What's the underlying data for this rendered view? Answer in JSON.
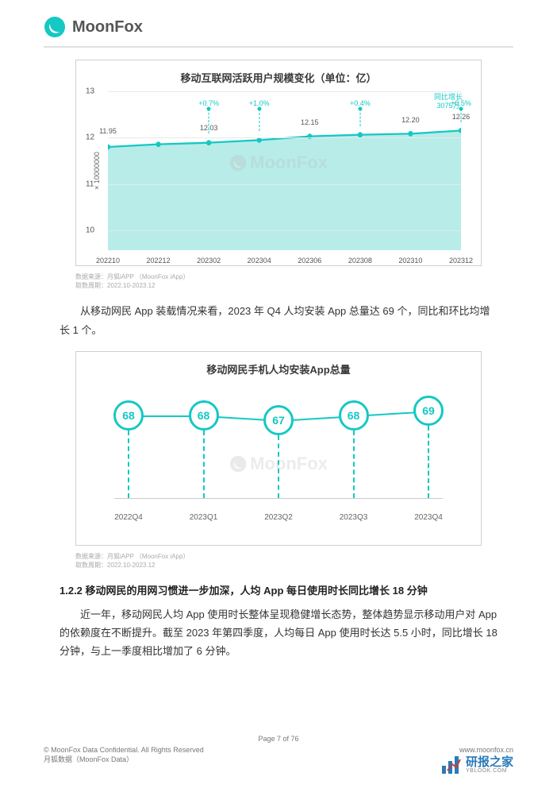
{
  "brand": {
    "name": "MoonFox"
  },
  "chart1": {
    "title": "移动互联网活跃用户规模变化（单位：亿）",
    "type": "area",
    "ylabel": "× 10000000",
    "ylim": [
      10,
      13
    ],
    "yticks": [
      10,
      11,
      12,
      13
    ],
    "xticks": [
      "202210",
      "202212",
      "202302",
      "202304",
      "202306",
      "202308",
      "202310",
      "202312"
    ],
    "values": [
      11.95,
      12.0,
      12.03,
      12.08,
      12.15,
      12.18,
      12.2,
      12.26
    ],
    "value_labels": [
      "11.95",
      "",
      "12.03",
      "",
      "12.15",
      "",
      "12.20",
      "12.26"
    ],
    "pct_labels": [
      "",
      "",
      "+0.7%",
      "+1.0%",
      "",
      "+0.4%",
      "",
      "+0.5%"
    ],
    "growth_label": "同比增长\n3075万",
    "line_color": "#14c8c4",
    "fill_color": "#b8ece9",
    "grid_color": "#e8e8e8",
    "background_color": "#ffffff",
    "source_line1": "数据来源：月狐iAPP （MoonFox iApp）",
    "source_line2": "取数周期：2022.10-2023.12"
  },
  "paragraph1": "从移动网民 App 装载情况来看，2023 年 Q4 人均安装 App 总量达 69 个，同比和环比均增长 1 个。",
  "chart2": {
    "title": "移动网民手机人均安装App总量",
    "type": "bubble-line",
    "xticks": [
      "2022Q4",
      "2023Q1",
      "2023Q2",
      "2023Q3",
      "2023Q4"
    ],
    "values": [
      68,
      68,
      67,
      68,
      69
    ],
    "bubble_color": "#14c8c4",
    "background_color": "#ffffff",
    "source_line1": "数据来源：月狐iAPP （MoonFox iApp）",
    "source_line2": "取数周期：2022.10-2023.12"
  },
  "section_head": "1.2.2  移动网民的用网习惯进一步加深，人均 App 每日使用时长同比增长 18 分钟",
  "paragraph2": "近一年，移动网民人均 App 使用时长整体呈现稳健增长态势，整体趋势显示移动用户对 App 的依赖度在不断提升。截至 2023 年第四季度，人均每日 App 使用时长达 5.5 小时，同比增长 18 分钟，与上一季度相比增加了 6 分钟。",
  "footer": {
    "page": "Page  7 of 76",
    "copyright": "© MoonFox Data Confidential. All Rights Reserved",
    "url": "www.moonfox.cn",
    "company": "月狐数据（MoonFox Data）"
  },
  "yblook": {
    "text": "研报之家",
    "sub": "YBLOOK.COM"
  },
  "watermark": "MoonFox"
}
